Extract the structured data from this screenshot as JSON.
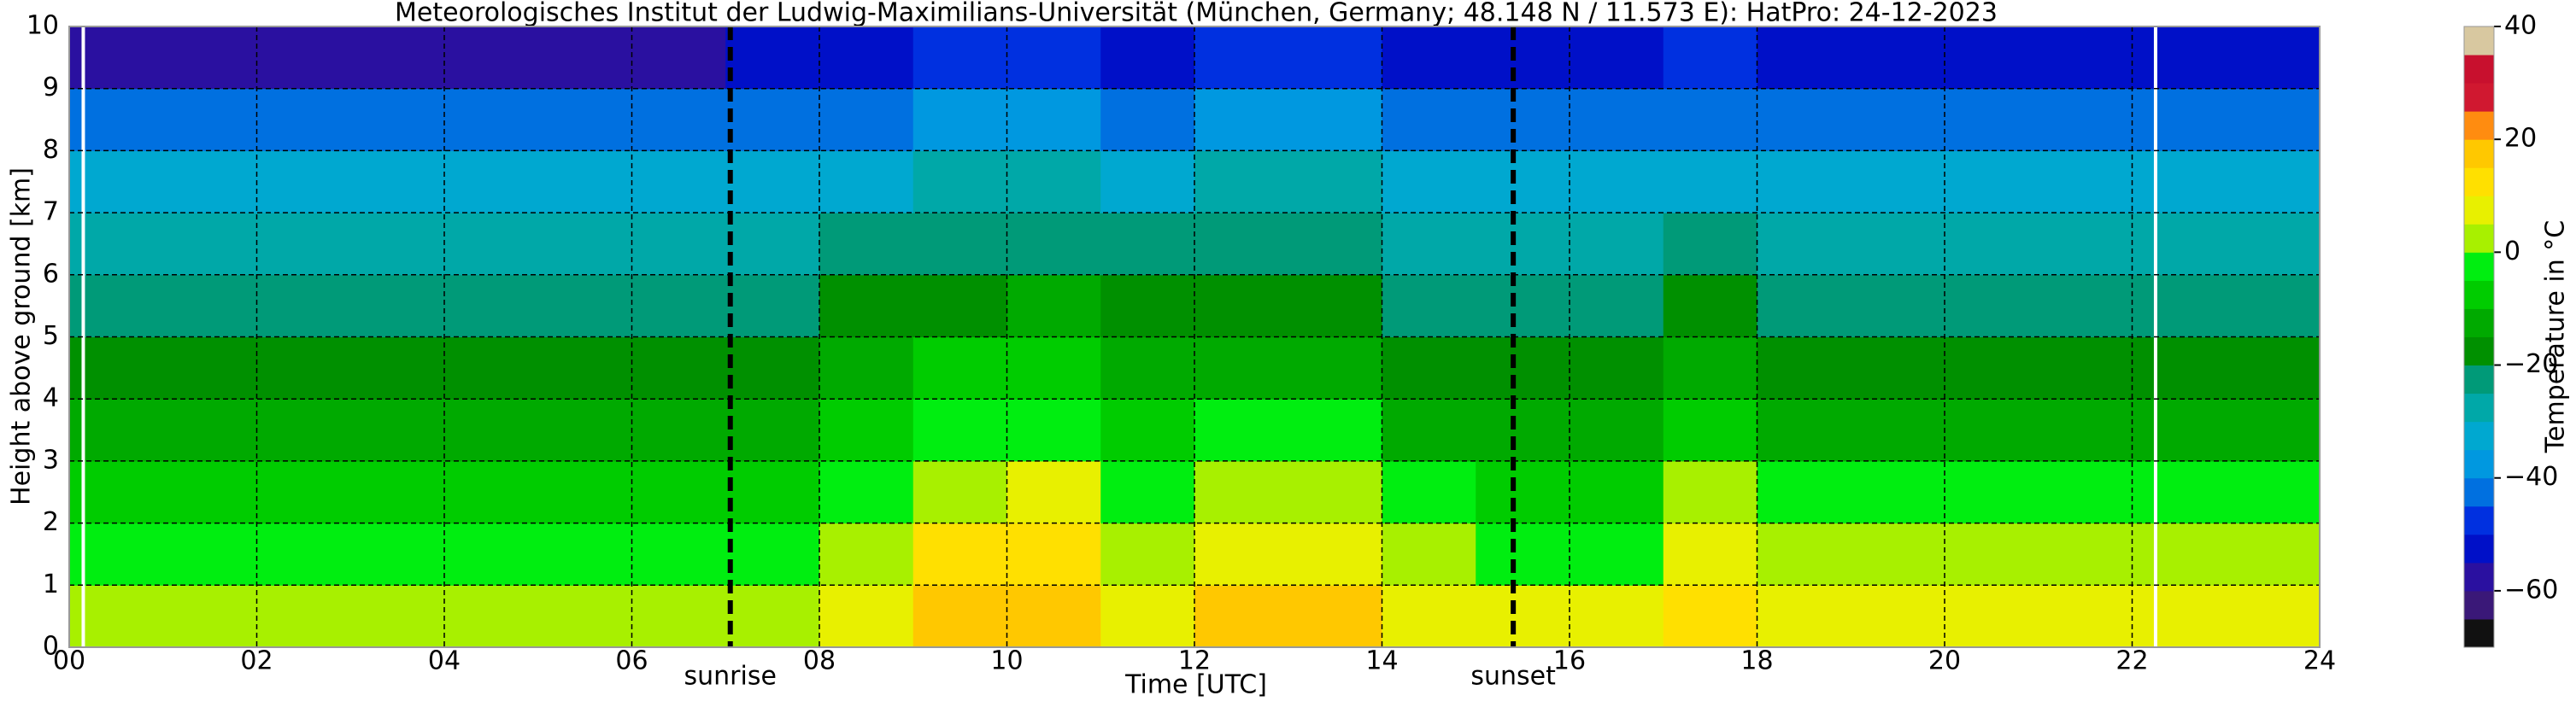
{
  "chart_data": {
    "type": "heatmap",
    "title": "Meteorologisches Institut der Ludwig-Maximilians-Universität (München, Germany; 48.148 N / 11.573 E):    HatPro: 24-12-2023",
    "x_label": "Time [UTC]",
    "y_label": "Height above ground [km]",
    "colorbar_label": "Temperature in °C",
    "x_edges": [
      0,
      1,
      2,
      3,
      4,
      5,
      6,
      7,
      8,
      9,
      10,
      11,
      12,
      13,
      14,
      15,
      16,
      17,
      18,
      19,
      20,
      21,
      22,
      23,
      24
    ],
    "y_edges": [
      0,
      1,
      2,
      3,
      4,
      5,
      6,
      7,
      8,
      9,
      10
    ],
    "z": [
      [
        3,
        3,
        3,
        3,
        3,
        3,
        4,
        4,
        8,
        17,
        18,
        9,
        16,
        15,
        7,
        5,
        5,
        13,
        7,
        7,
        7,
        8,
        8,
        8
      ],
      [
        -3,
        -3,
        -3,
        -3,
        -3,
        -3,
        -3,
        -2,
        2,
        10,
        11,
        3,
        9,
        8,
        0,
        -2,
        -2,
        7,
        0,
        0,
        0,
        1,
        1,
        1
      ],
      [
        -8,
        -8,
        -8,
        -8,
        -8,
        -8,
        -8,
        -7,
        -4,
        4,
        5,
        -3,
        3,
        2,
        -5,
        -6,
        -6,
        1,
        -5,
        -5,
        -5,
        -5,
        -5,
        -5
      ],
      [
        -13,
        -13,
        -13,
        -13,
        -13,
        -13,
        -13,
        -13,
        -9,
        -3,
        -2,
        -9,
        -4,
        -5,
        -11,
        -12,
        -12,
        -6,
        -11,
        -11,
        -11,
        -11,
        -11,
        -11
      ],
      [
        -18,
        -18,
        -18,
        -18,
        -18,
        -18,
        -18,
        -18,
        -14,
        -10,
        -9,
        -14,
        -11,
        -11,
        -16,
        -17,
        -17,
        -12,
        -17,
        -17,
        -17,
        -17,
        -17,
        -17
      ],
      [
        -23,
        -23,
        -23,
        -23,
        -23,
        -23,
        -23,
        -23,
        -19,
        -16,
        -15,
        -19,
        -16,
        -16,
        -21,
        -22,
        -22,
        -17,
        -22,
        -22,
        -22,
        -22,
        -22,
        -22
      ],
      [
        -29,
        -29,
        -29,
        -29,
        -29,
        -29,
        -29,
        -29,
        -25,
        -21,
        -21,
        -24,
        -21,
        -21,
        -27,
        -28,
        -28,
        -22,
        -28,
        -28,
        -28,
        -28,
        -28,
        -28
      ],
      [
        -35,
        -35,
        -35,
        -35,
        -35,
        -35,
        -35,
        -35,
        -32,
        -30,
        -30,
        -32,
        -30,
        -30,
        -34,
        -35,
        -35,
        -31,
        -35,
        -35,
        -35,
        -35,
        -35,
        -35
      ],
      [
        -45,
        -45,
        -45,
        -45,
        -45,
        -45,
        -45,
        -45,
        -42,
        -40,
        -40,
        -42,
        -40,
        -40,
        -44,
        -45,
        -45,
        -41,
        -45,
        -45,
        -45,
        -45,
        -45,
        -45
      ],
      [
        -58,
        -58,
        -58,
        -58,
        -58,
        -58,
        -57,
        -55,
        -52,
        -48,
        -48,
        -52,
        -49,
        -50,
        -53,
        -54,
        -54,
        -49,
        -54,
        -54,
        -54,
        -54,
        -54,
        -54
      ]
    ],
    "levels": [
      -70,
      -65,
      -60,
      -55,
      -50,
      -45,
      -40,
      -35,
      -30,
      -25,
      -20,
      -15,
      -10,
      -5,
      0,
      5,
      10,
      15,
      20,
      25,
      30,
      35,
      40
    ],
    "level_colors": [
      "#111111",
      "#3a1878",
      "#2a10a0",
      "#0010c8",
      "#0030e0",
      "#0070e0",
      "#0098e0",
      "#00a8d0",
      "#00a8a8",
      "#009a78",
      "#009000",
      "#00aa00",
      "#00cc00",
      "#00ee10",
      "#a8f000",
      "#e8f000",
      "#ffe000",
      "#ffc800",
      "#ff8c10",
      "#d01830",
      "#c8102e",
      "#d8c8a0"
    ],
    "xlim": [
      0,
      24
    ],
    "ylim": [
      0,
      10
    ],
    "clim": [
      -70,
      40
    ],
    "xticks": [
      {
        "value": 0,
        "label": "00"
      },
      {
        "value": 2,
        "label": "02"
      },
      {
        "value": 4,
        "label": "04"
      },
      {
        "value": 6,
        "label": "06"
      },
      {
        "value": 8,
        "label": "08"
      },
      10,
      12,
      14,
      16,
      18,
      20,
      22,
      24
    ],
    "yticks": [
      0,
      1,
      2,
      3,
      4,
      5,
      6,
      7,
      8,
      9,
      10
    ],
    "cticks": [
      {
        "value": -60,
        "label": "−60"
      },
      {
        "value": -40,
        "label": "−40"
      },
      {
        "value": -20,
        "label": "−20"
      },
      0,
      20,
      40
    ],
    "events": [
      {
        "x": 7.05,
        "label": "sunrise"
      },
      {
        "x": 15.4,
        "label": "sunset"
      }
    ],
    "white_lines": [
      0.15,
      22.25
    ],
    "grid": true
  }
}
